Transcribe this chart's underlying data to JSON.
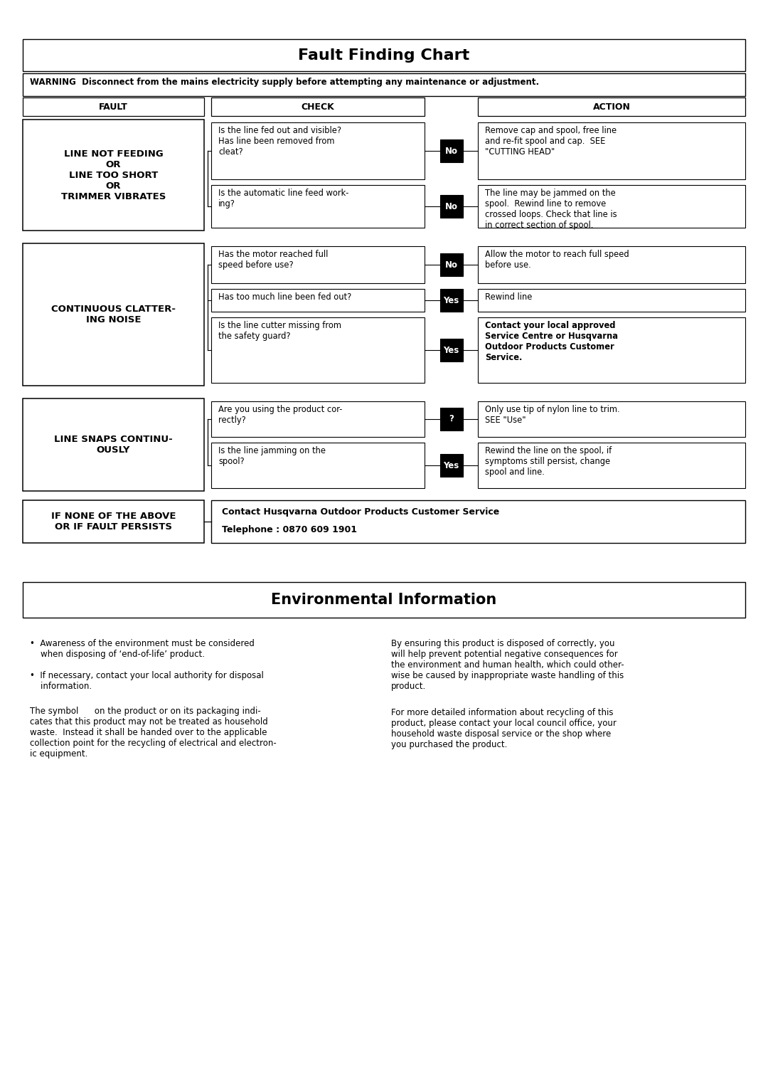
{
  "title": "Fault Finding Chart",
  "warning": "WARNING  Disconnect from the mains electricity supply before attempting any maintenance or adjustment.",
  "col_headers": [
    "FAULT",
    "CHECK",
    "ACTION"
  ],
  "fault_rows": [
    {
      "fault": "LINE NOT FEEDING\nOR\nLINE TOO SHORT\nOR\nTRIMMER VIBRATES",
      "checks": [
        {
          "check": "Is the line fed out and visible?\nHas line been removed from\ncleat?",
          "answer": "No",
          "action": "Remove cap and spool, free line\nand re-fit spool and cap.  SEE\n\"CUTTING HEAD\""
        },
        {
          "check": "Is the automatic line feed work-\ning?",
          "answer": "No",
          "action": "The line may be jammed on the\nspool.  Rewind line to remove\ncrossed loops. Check that line is\nin correct section of spool."
        }
      ]
    },
    {
      "fault": "CONTINUOUS CLATTER-\nING NOISE",
      "checks": [
        {
          "check": "Has the motor reached full\nspeed before use?",
          "answer": "No",
          "action": "Allow the motor to reach full speed\nbefore use."
        },
        {
          "check": "Has too much line been fed out?",
          "answer": "Yes",
          "action": "Rewind line"
        },
        {
          "check": "Is the line cutter missing from\nthe safety guard?",
          "answer": "Yes",
          "action": "Contact your local approved\nService Centre or Husqvarna\nOutdoor Products Customer\nService.",
          "action_bold": true
        }
      ]
    },
    {
      "fault": "LINE SNAPS CONTINU-\nOUSLY",
      "checks": [
        {
          "check": "Are you using the product cor-\nrectly?",
          "answer": "?",
          "action": "Only use tip of nylon line to trim.\nSEE \"Use\""
        },
        {
          "check": "Is the line jamming on the\nspool?",
          "answer": "Yes",
          "action": "Rewind the line on the spool, if\nsymptoms still persist, change\nspool and line."
        }
      ]
    }
  ],
  "final_row": {
    "fault": "IF NONE OF THE ABOVE\nOR IF FAULT PERSISTS",
    "action_line1": "Contact Husqvarna Outdoor Products Customer Service",
    "action_line2": "Telephone : 0870 609 1901"
  },
  "env_title": "Environmental Information",
  "env_left_col": [
    "•  Awareness of the environment must be considered\n    when disposing of ‘end-of-life’ product.",
    "•  If necessary, contact your local authority for disposal\n    information."
  ],
  "env_left_para": "The symbol      on the product or on its packaging indi-\ncates that this product may not be treated as household\nwaste.  Instead it shall be handed over to the applicable\ncollection point for the recycling of electrical and electron-\nic equipment.",
  "env_right_para1": "By ensuring this product is disposed of correctly, you\nwill help prevent potential negative consequences for\nthe environment and human health, which could other-\nwise be caused by inappropriate waste handling of this\nproduct.",
  "env_right_para2": "For more detailed information about recycling of this\nproduct, please contact your local council office, your\nhousehold waste disposal service or the shop where\nyou purchased the product.",
  "bg_color": "#ffffff"
}
